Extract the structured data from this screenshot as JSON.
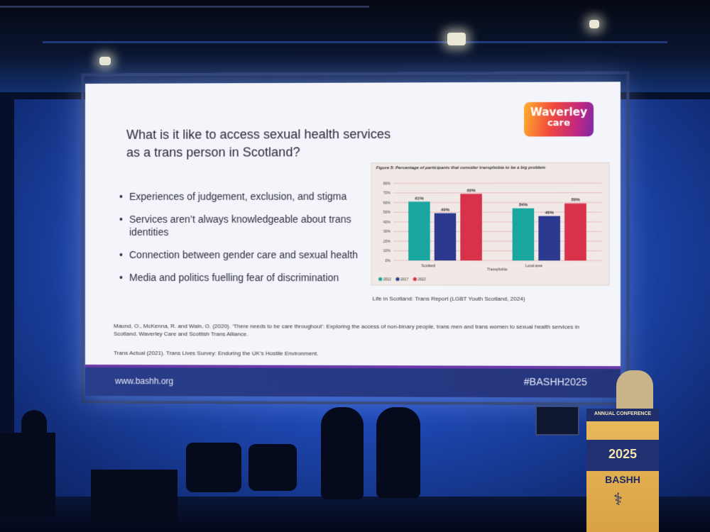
{
  "slide": {
    "title": "What is it like to access sexual health services as a trans person in Scotland?",
    "logo": {
      "line1": "Waverley",
      "line2": "care"
    },
    "bullets": [
      "Experiences of judgement, exclusion, and stigma",
      "Services aren’t always knowledgeable about trans identities",
      "Connection between gender care and sexual health",
      "Media and politics fuelling fear of discrimination"
    ],
    "caption": "Life in Scotland: Trans Report (LGBT Youth Scotland, 2024)",
    "references": [
      "Maund, O., McKenna, R. and Wain, O. (2020). ‘There needs to be care throughout’: Exploring the access of non-binary people, trans men and trans women to sexual health services in Scotland. Waverley Care and Scottish Trans Alliance.",
      "Trans Actual (2021). Trans Lives Survey: Enduring the UK’s Hostile Environment."
    ],
    "footer": {
      "url": "www.bashh.org",
      "hashtag": "#BASHH2025"
    }
  },
  "chart_data": {
    "type": "bar",
    "title": "Figure 5: Percentage of participants that consider transphobia to be a big problem",
    "categories": [
      "Scotland",
      "Local area"
    ],
    "xlabel": "Transphobia",
    "ylabel": "",
    "ylim": [
      0,
      80
    ],
    "yticks": [
      "0%",
      "10%",
      "20%",
      "30%",
      "40%",
      "50%",
      "60%",
      "70%",
      "80%"
    ],
    "series": [
      {
        "name": "2012",
        "values": [
          61,
          54
        ],
        "labels": [
          "61%",
          "54%"
        ],
        "color": "#1aa6a0"
      },
      {
        "name": "2017",
        "values": [
          49,
          46
        ],
        "labels": [
          "49%",
          "46%"
        ],
        "color": "#2b3a8f"
      },
      {
        "name": "2022",
        "values": [
          69,
          59
        ],
        "labels": [
          "69%",
          "59%"
        ],
        "color": "#d8324a"
      }
    ],
    "grid": true,
    "legend": "bottom-left"
  },
  "podium": {
    "conference": "ANNUAL CONFERENCE",
    "year": "2025",
    "name": "BASHH",
    "icon": "caduceus-icon"
  }
}
